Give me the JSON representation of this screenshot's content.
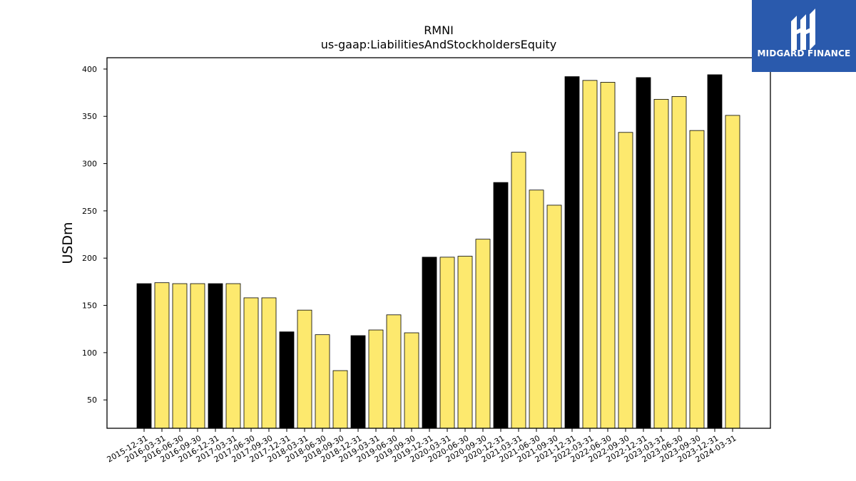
{
  "logo": {
    "text": "MIDGARD FINANCE",
    "icon": "midgard-logo-mark",
    "background": "#2a5aad"
  },
  "chart_data": {
    "type": "bar",
    "title": "RMNI",
    "subtitle": "us-gaap:LiabilitiesAndStockholdersEquity",
    "xlabel": "",
    "ylabel": "USDm",
    "ylim": [
      20,
      412
    ],
    "yticks": [
      50,
      100,
      150,
      200,
      250,
      300,
      350,
      400
    ],
    "grid": false,
    "colors": {
      "year_end": "#000000",
      "quarter": "#fde96e",
      "edge": "#000000"
    },
    "categories": [
      "2015-12-31",
      "2016-03-31",
      "2016-06-30",
      "2016-09-30",
      "2016-12-31",
      "2017-03-31",
      "2017-06-30",
      "2017-09-30",
      "2017-12-31",
      "2018-03-31",
      "2018-06-30",
      "2018-09-30",
      "2018-12-31",
      "2019-03-31",
      "2019-06-30",
      "2019-09-30",
      "2019-12-31",
      "2020-03-31",
      "2020-06-30",
      "2020-09-30",
      "2020-12-31",
      "2021-03-31",
      "2021-06-30",
      "2021-09-30",
      "2021-12-31",
      "2022-03-31",
      "2022-06-30",
      "2022-09-30",
      "2022-12-31",
      "2023-03-31",
      "2023-06-30",
      "2023-09-30",
      "2023-12-31",
      "2024-03-31"
    ],
    "values": [
      173,
      174,
      173,
      173,
      173,
      173,
      158,
      158,
      122,
      145,
      119,
      81,
      118,
      124,
      140,
      121,
      201,
      201,
      202,
      220,
      280,
      312,
      272,
      256,
      392,
      388,
      386,
      333,
      391,
      368,
      371,
      335,
      394,
      351
    ]
  }
}
